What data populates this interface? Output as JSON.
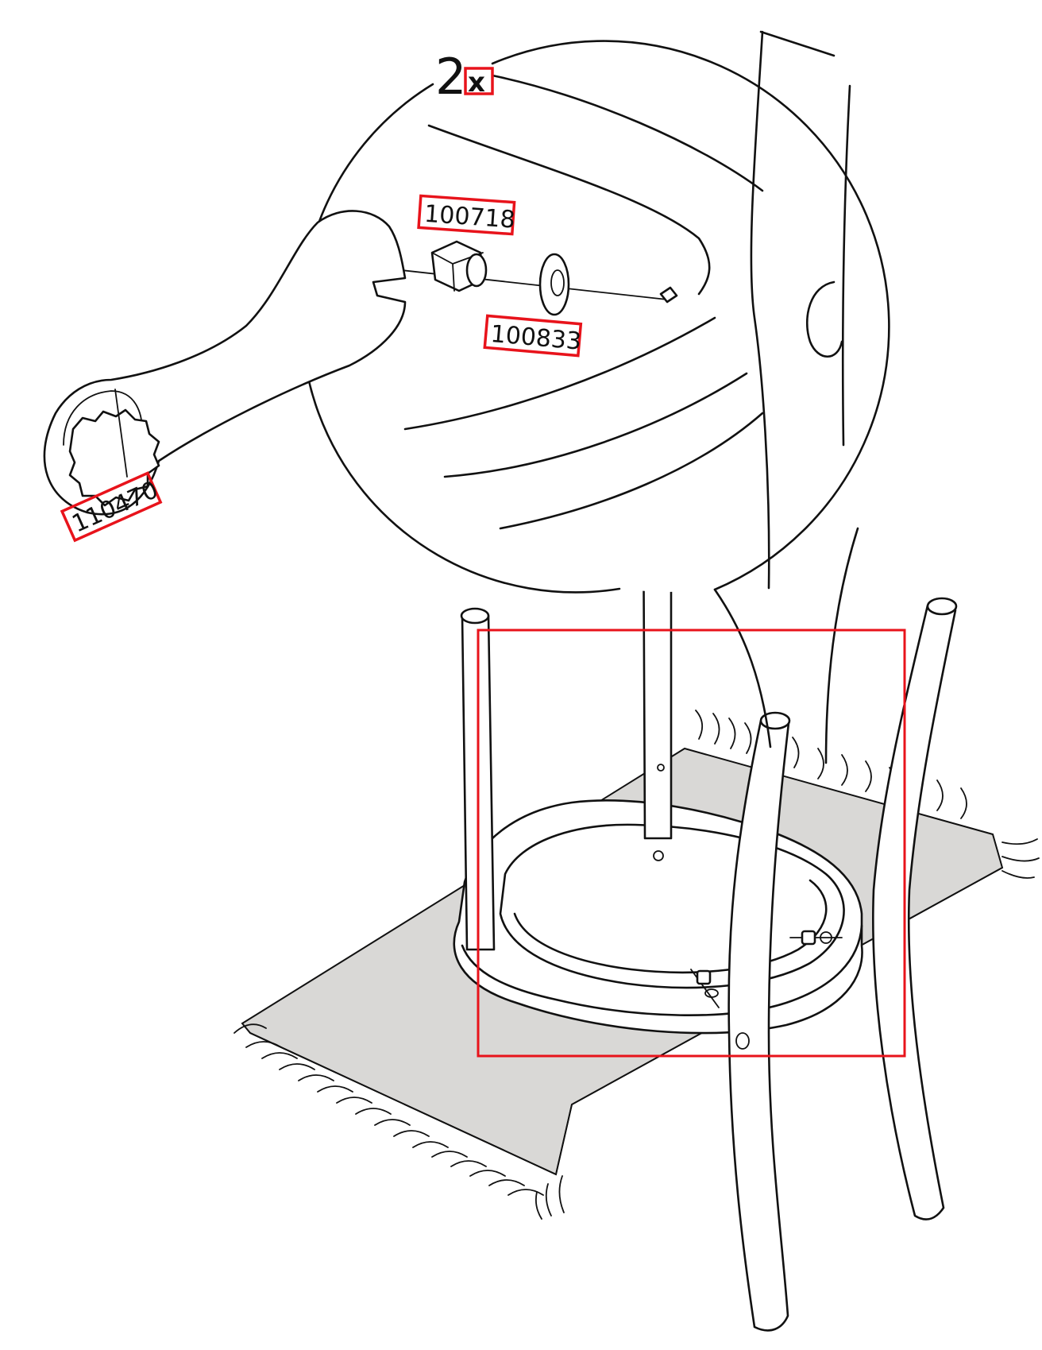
{
  "detail": {
    "quantity_number": "2",
    "quantity_symbol": "x"
  },
  "parts": {
    "nut_code": "100718",
    "washer_code": "100833",
    "wrench_code": "110470"
  },
  "colors": {
    "highlight": "#e8131b",
    "mat": "#d9d8d6",
    "line": "#111111"
  }
}
